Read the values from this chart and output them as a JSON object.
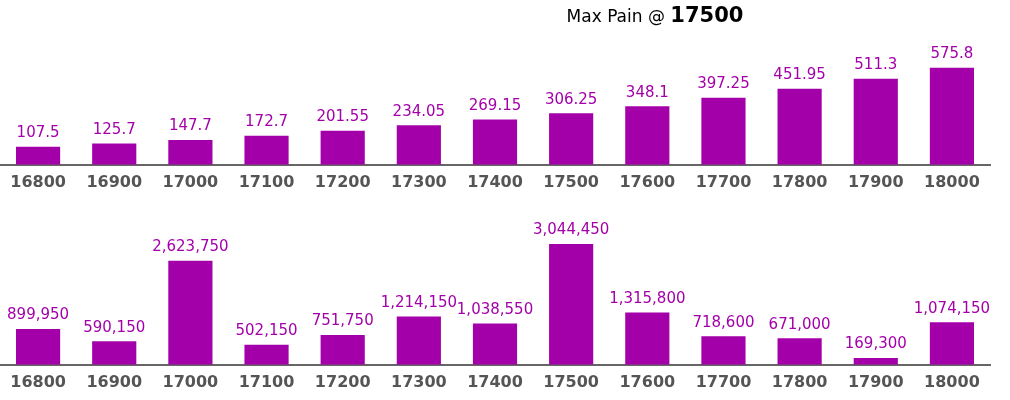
{
  "chart_data": [
    {
      "type": "bar",
      "title": "Max Pain @ 17500",
      "categories": [
        "16800",
        "16900",
        "17000",
        "17100",
        "17200",
        "17300",
        "17400",
        "17500",
        "17600",
        "17700",
        "17800",
        "17900",
        "18000"
      ],
      "values": [
        107.5,
        125.7,
        147.7,
        172.7,
        201.55,
        234.05,
        269.15,
        306.25,
        348.1,
        397.25,
        451.95,
        511.3,
        575.8
      ],
      "color": "#a300a9",
      "data_labels": true,
      "tick_labels": "x",
      "legend": false
    },
    {
      "type": "bar",
      "categories": [
        "16800",
        "16900",
        "17000",
        "17100",
        "17200",
        "17300",
        "17400",
        "17500",
        "17600",
        "17700",
        "17800",
        "17900",
        "18000"
      ],
      "values": [
        899950,
        590150,
        2623750,
        502150,
        751750,
        1214150,
        1038550,
        3044450,
        1315800,
        718600,
        671000,
        169300,
        1074150
      ],
      "color": "#a300a9",
      "value_labels": [
        "899,950",
        "590,150",
        "2,623,750",
        "502,150",
        "751,750",
        "1,214,150",
        "1,038,550",
        "3,044,450",
        "1,315,800",
        "718,600",
        "671,000",
        "169,300",
        "1,074,150"
      ],
      "tick_labels": "x",
      "legend": false
    }
  ]
}
